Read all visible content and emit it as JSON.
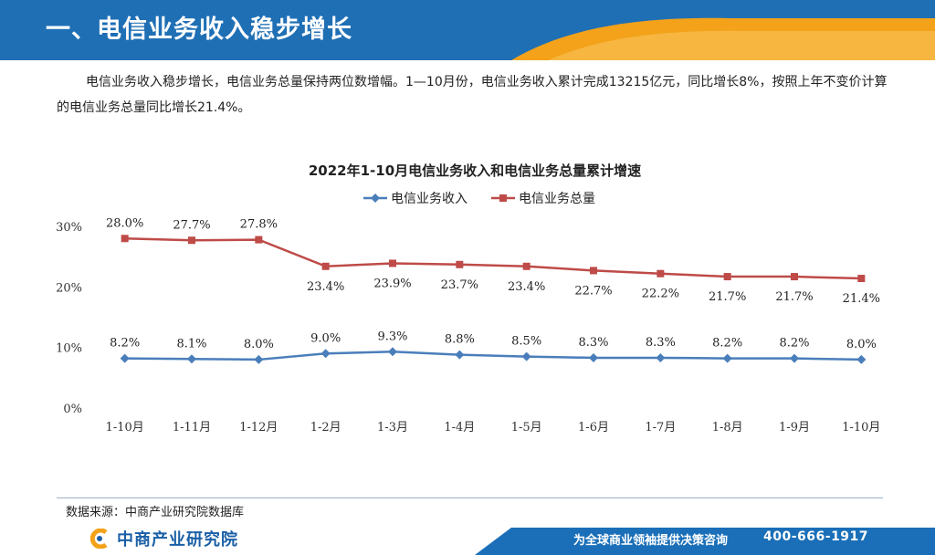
{
  "header": {
    "title": "一、电信业务收入稳步增长"
  },
  "intro": {
    "text": "电信业务收入稳步增长，电信业务总量保持两位数增幅。1—10月份，电信业务收入累计完成13215亿元，同比增长8%，按照上年不变价计算的电信业务总量同比增长21.4%。"
  },
  "chart_data": {
    "type": "line",
    "title": "2022年1-10月电信业务收入和电信业务总量累计增速",
    "categories": [
      "1-10月",
      "1-11月",
      "1-12月",
      "1-2月",
      "1-3月",
      "1-4月",
      "1-5月",
      "1-6月",
      "1-7月",
      "1-8月",
      "1-9月",
      "1-10月"
    ],
    "series": [
      {
        "name": "电信业务收入",
        "color": "#4a7ebb",
        "values": [
          8.2,
          8.1,
          8.0,
          9.0,
          9.3,
          8.8,
          8.5,
          8.3,
          8.3,
          8.2,
          8.2,
          8.0
        ],
        "labels": [
          "8.2%",
          "8.1%",
          "8.0%",
          "9.0%",
          "9.3%",
          "8.8%",
          "8.5%",
          "8.3%",
          "8.3%",
          "8.2%",
          "8.2%",
          "8.0%"
        ]
      },
      {
        "name": "电信业务总量",
        "color": "#be4b48",
        "values": [
          28.0,
          27.7,
          27.8,
          23.4,
          23.9,
          23.7,
          23.4,
          22.7,
          22.2,
          21.7,
          21.7,
          21.4
        ],
        "labels": [
          "28.0%",
          "27.7%",
          "27.8%",
          "23.4%",
          "23.9%",
          "23.7%",
          "23.4%",
          "22.7%",
          "22.2%",
          "21.7%",
          "21.7%",
          "21.4%"
        ]
      }
    ],
    "ylim": [
      0,
      30
    ],
    "yticks": [
      0,
      10,
      20,
      30
    ],
    "ytick_labels": [
      "0%",
      "10%",
      "20%",
      "30%"
    ],
    "grid": false,
    "legend": "top-center"
  },
  "source": {
    "text": "数据来源：中商产业研究院数据库"
  },
  "footer": {
    "logo_text": "中商产业研究院",
    "slogan": "为全球商业领袖提供决策咨询",
    "phone": "400-666-1917",
    "colors": {
      "blue": "#1a6fb8",
      "orange": "#f3a21a"
    }
  }
}
